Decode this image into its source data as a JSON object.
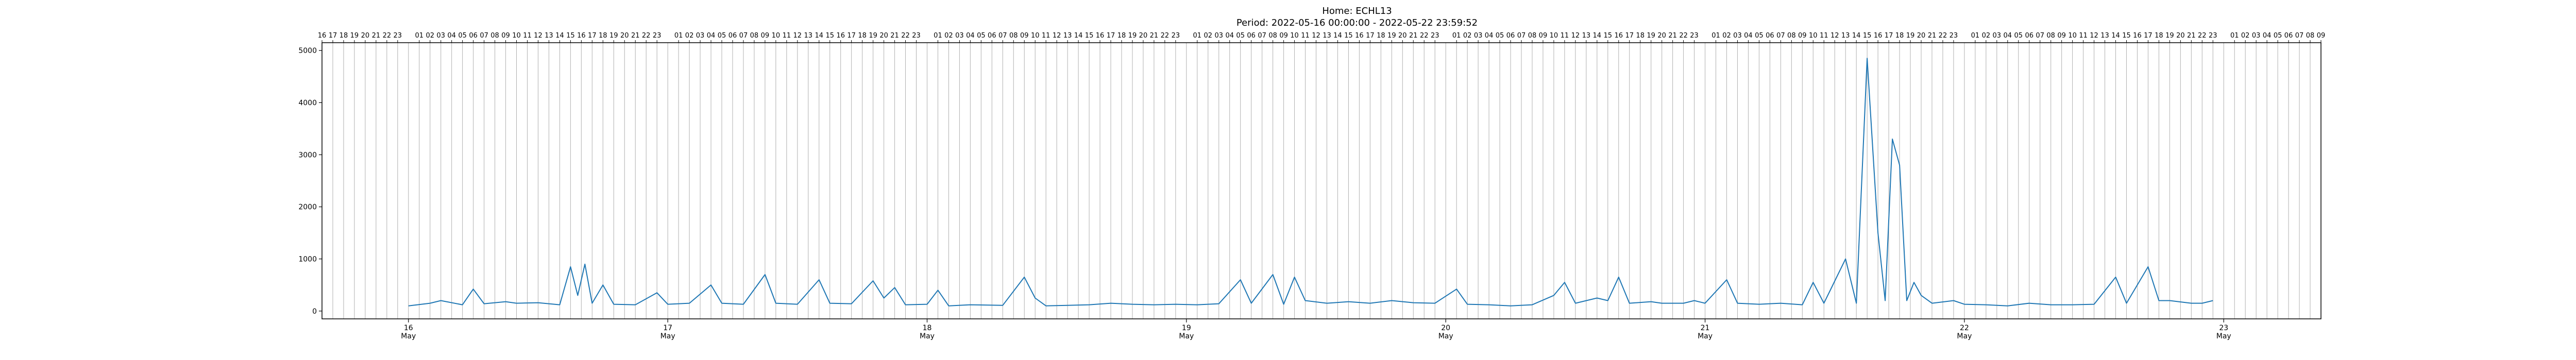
{
  "title": "Home: ECHL13",
  "subtitle": "Period: 2022-05-16 00:00:00 - 2022-05-22 23:59:52",
  "colors": {
    "line": "#1f77b4",
    "grid": "#b0b0b0",
    "axis": "#000000"
  },
  "chart_data": {
    "type": "line",
    "title": "Home: ECHL13",
    "subtitle": "Period: 2022-05-16 00:00:00 - 2022-05-22 23:59:52",
    "xlabel": "",
    "ylabel": "",
    "grid": "vertical hourly lines",
    "ylim": [
      -150,
      5150
    ],
    "xlim": [
      "2022-05-15T16:00",
      "2022-05-23T09:00"
    ],
    "yticks": [
      0,
      1000,
      2000,
      3000,
      4000,
      5000
    ],
    "x_major_ticks": [
      {
        "date": "2022-05-16",
        "day": "16",
        "month": "May"
      },
      {
        "date": "2022-05-17",
        "day": "17",
        "month": "May"
      },
      {
        "date": "2022-05-18",
        "day": "18",
        "month": "May"
      },
      {
        "date": "2022-05-19",
        "day": "19",
        "month": "May"
      },
      {
        "date": "2022-05-20",
        "day": "20",
        "month": "May"
      },
      {
        "date": "2022-05-21",
        "day": "21",
        "month": "May"
      },
      {
        "date": "2022-05-22",
        "day": "22",
        "month": "May"
      },
      {
        "date": "2022-05-23",
        "day": "23",
        "month": "May"
      }
    ],
    "x_minor_top_labels": "hour of day (01–23) on each hourly gridline",
    "series": [
      {
        "name": "",
        "points": [
          [
            "2022-05-16T00:00",
            100
          ],
          [
            "2022-05-16T02:00",
            150
          ],
          [
            "2022-05-16T03:00",
            200
          ],
          [
            "2022-05-16T05:00",
            120
          ],
          [
            "2022-05-16T06:00",
            420
          ],
          [
            "2022-05-16T07:00",
            140
          ],
          [
            "2022-05-16T09:00",
            180
          ],
          [
            "2022-05-16T10:00",
            150
          ],
          [
            "2022-05-16T12:00",
            160
          ],
          [
            "2022-05-16T14:00",
            120
          ],
          [
            "2022-05-16T15:00",
            850
          ],
          [
            "2022-05-16T15:40",
            300
          ],
          [
            "2022-05-16T16:20",
            900
          ],
          [
            "2022-05-16T17:00",
            150
          ],
          [
            "2022-05-16T18:00",
            500
          ],
          [
            "2022-05-16T19:00",
            130
          ],
          [
            "2022-05-16T21:00",
            120
          ],
          [
            "2022-05-16T23:00",
            350
          ],
          [
            "2022-05-17T00:00",
            130
          ],
          [
            "2022-05-17T02:00",
            150
          ],
          [
            "2022-05-17T04:00",
            500
          ],
          [
            "2022-05-17T05:00",
            150
          ],
          [
            "2022-05-17T07:00",
            130
          ],
          [
            "2022-05-17T09:00",
            700
          ],
          [
            "2022-05-17T10:00",
            150
          ],
          [
            "2022-05-17T12:00",
            130
          ],
          [
            "2022-05-17T14:00",
            600
          ],
          [
            "2022-05-17T15:00",
            150
          ],
          [
            "2022-05-17T17:00",
            140
          ],
          [
            "2022-05-17T19:00",
            580
          ],
          [
            "2022-05-17T20:00",
            250
          ],
          [
            "2022-05-17T21:00",
            450
          ],
          [
            "2022-05-17T22:00",
            120
          ],
          [
            "2022-05-18T00:00",
            130
          ],
          [
            "2022-05-18T01:00",
            400
          ],
          [
            "2022-05-18T02:00",
            100
          ],
          [
            "2022-05-18T04:00",
            120
          ],
          [
            "2022-05-18T07:00",
            110
          ],
          [
            "2022-05-18T09:00",
            650
          ],
          [
            "2022-05-18T10:00",
            250
          ],
          [
            "2022-05-18T11:00",
            100
          ],
          [
            "2022-05-18T13:00",
            110
          ],
          [
            "2022-05-18T15:00",
            120
          ],
          [
            "2022-05-18T17:00",
            150
          ],
          [
            "2022-05-18T19:00",
            130
          ],
          [
            "2022-05-18T21:00",
            120
          ],
          [
            "2022-05-18T23:00",
            130
          ],
          [
            "2022-05-19T01:00",
            120
          ],
          [
            "2022-05-19T03:00",
            140
          ],
          [
            "2022-05-19T05:00",
            600
          ],
          [
            "2022-05-19T06:00",
            150
          ],
          [
            "2022-05-19T08:00",
            700
          ],
          [
            "2022-05-19T09:00",
            130
          ],
          [
            "2022-05-19T10:00",
            650
          ],
          [
            "2022-05-19T11:00",
            200
          ],
          [
            "2022-05-19T13:00",
            150
          ],
          [
            "2022-05-19T15:00",
            180
          ],
          [
            "2022-05-19T17:00",
            150
          ],
          [
            "2022-05-19T19:00",
            200
          ],
          [
            "2022-05-19T21:00",
            160
          ],
          [
            "2022-05-19T23:00",
            150
          ],
          [
            "2022-05-20T01:00",
            420
          ],
          [
            "2022-05-20T02:00",
            130
          ],
          [
            "2022-05-20T04:00",
            120
          ],
          [
            "2022-05-20T06:00",
            100
          ],
          [
            "2022-05-20T08:00",
            120
          ],
          [
            "2022-05-20T10:00",
            300
          ],
          [
            "2022-05-20T11:00",
            550
          ],
          [
            "2022-05-20T12:00",
            150
          ],
          [
            "2022-05-20T14:00",
            250
          ],
          [
            "2022-05-20T15:00",
            200
          ],
          [
            "2022-05-20T16:00",
            650
          ],
          [
            "2022-05-20T17:00",
            150
          ],
          [
            "2022-05-20T19:00",
            180
          ],
          [
            "2022-05-20T20:00",
            150
          ],
          [
            "2022-05-20T22:00",
            150
          ],
          [
            "2022-05-20T23:00",
            200
          ],
          [
            "2022-05-21T00:00",
            150
          ],
          [
            "2022-05-21T02:00",
            600
          ],
          [
            "2022-05-21T03:00",
            150
          ],
          [
            "2022-05-21T05:00",
            130
          ],
          [
            "2022-05-21T07:00",
            150
          ],
          [
            "2022-05-21T09:00",
            120
          ],
          [
            "2022-05-21T10:00",
            550
          ],
          [
            "2022-05-21T11:00",
            150
          ],
          [
            "2022-05-21T13:00",
            1000
          ],
          [
            "2022-05-21T14:00",
            150
          ],
          [
            "2022-05-21T15:00",
            4850
          ],
          [
            "2022-05-21T16:00",
            1500
          ],
          [
            "2022-05-21T16:40",
            200
          ],
          [
            "2022-05-21T17:20",
            3300
          ],
          [
            "2022-05-21T18:00",
            2800
          ],
          [
            "2022-05-21T18:40",
            200
          ],
          [
            "2022-05-21T19:20",
            550
          ],
          [
            "2022-05-21T20:00",
            300
          ],
          [
            "2022-05-21T21:00",
            150
          ],
          [
            "2022-05-21T23:00",
            200
          ],
          [
            "2022-05-22T00:00",
            130
          ],
          [
            "2022-05-22T02:00",
            120
          ],
          [
            "2022-05-22T04:00",
            100
          ],
          [
            "2022-05-22T06:00",
            150
          ],
          [
            "2022-05-22T08:00",
            120
          ],
          [
            "2022-05-22T10:00",
            120
          ],
          [
            "2022-05-22T12:00",
            130
          ],
          [
            "2022-05-22T14:00",
            650
          ],
          [
            "2022-05-22T15:00",
            150
          ],
          [
            "2022-05-22T17:00",
            850
          ],
          [
            "2022-05-22T18:00",
            200
          ],
          [
            "2022-05-22T19:00",
            200
          ],
          [
            "2022-05-22T21:00",
            150
          ],
          [
            "2022-05-22T22:00",
            150
          ],
          [
            "2022-05-22T23:00",
            200
          ]
        ]
      }
    ]
  }
}
